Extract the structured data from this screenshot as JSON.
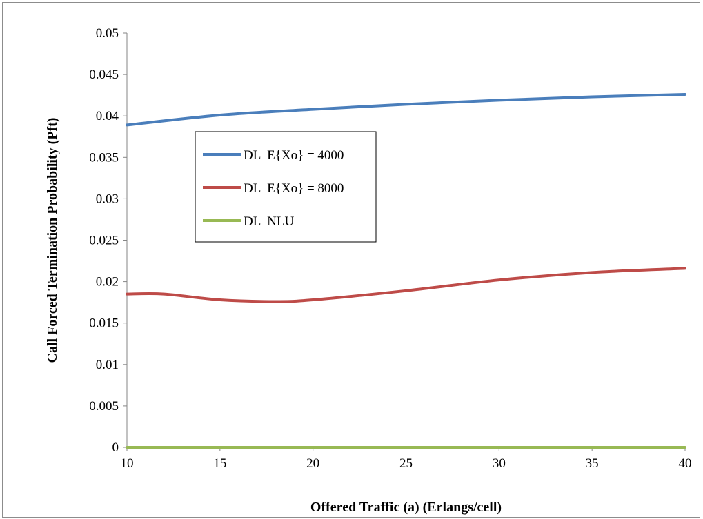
{
  "chart_data": {
    "type": "line",
    "title": "",
    "xlabel": "Offered Traffic (a) (Erlangs/cell)",
    "ylabel": "Call Forced Termination Probability (Pft)",
    "xlim": [
      10,
      40
    ],
    "ylim": [
      0,
      0.05
    ],
    "x_ticks": [
      "10",
      "15",
      "20",
      "25",
      "30",
      "35",
      "40"
    ],
    "y_ticks": [
      "0",
      "0.005",
      "0.01",
      "0.015",
      "0.02",
      "0.025",
      "0.03",
      "0.035",
      "0.04",
      "0.045",
      "0.05"
    ],
    "grid": false,
    "legend_position": "upper-left inside plot",
    "series": [
      {
        "name": "DL  E{Xo} = 4000",
        "color": "#4a7ebb",
        "x": [
          10,
          15,
          20,
          25,
          30,
          35,
          40
        ],
        "values": [
          0.0389,
          0.0401,
          0.0408,
          0.0414,
          0.0419,
          0.0423,
          0.0426
        ]
      },
      {
        "name": "DL  E{Xo} = 8000",
        "color": "#be4b48",
        "x": [
          10,
          12,
          15,
          18,
          20,
          25,
          30,
          35,
          40
        ],
        "values": [
          0.0185,
          0.0185,
          0.0178,
          0.0176,
          0.0178,
          0.0189,
          0.0202,
          0.0211,
          0.0216
        ]
      },
      {
        "name": "DL  NLU",
        "color": "#98b954",
        "x": [
          10,
          15,
          20,
          25,
          30,
          35,
          40
        ],
        "values": [
          0,
          0,
          0,
          0,
          0,
          0,
          0
        ]
      }
    ]
  }
}
